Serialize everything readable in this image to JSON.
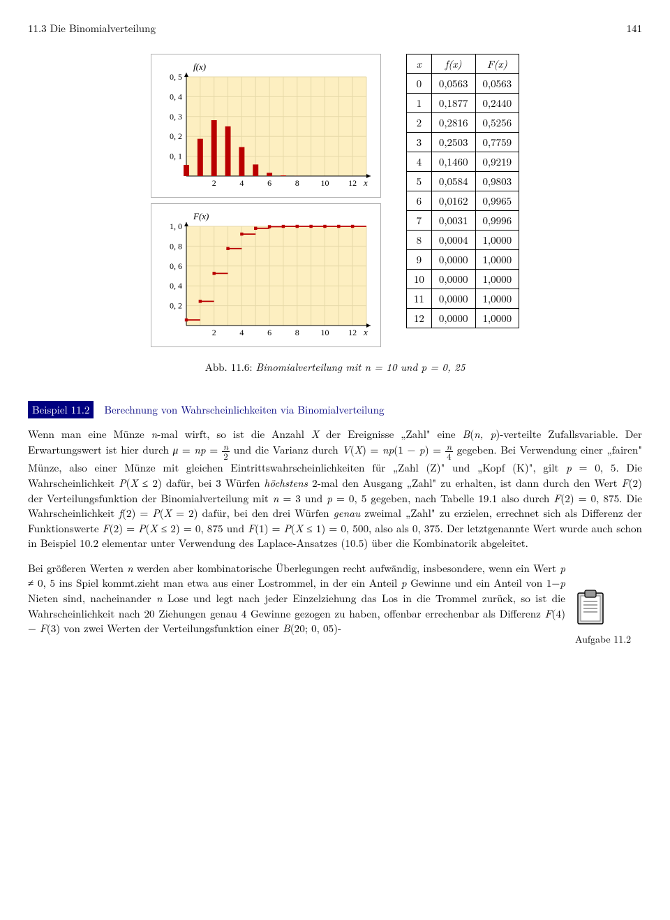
{
  "header": {
    "section": "11.3 Die Binomialverteilung",
    "page": "141"
  },
  "pmf_chart": {
    "type": "bar",
    "ylabel_expr": "f(x)",
    "xlabel": "x",
    "ylim": [
      0,
      0.5
    ],
    "ytick_step": 0.1,
    "ytick_labels": [
      "0, 1",
      "0, 2",
      "0, 3",
      "0, 4",
      "0, 5"
    ],
    "xlim": [
      0,
      13
    ],
    "xtick_step": 2,
    "xtick_labels": [
      "2",
      "4",
      "6",
      "8",
      "10",
      "12"
    ],
    "x_values": [
      0,
      1,
      2,
      3,
      4,
      5,
      6,
      7,
      8,
      9,
      10,
      11,
      12
    ],
    "y_values": [
      0.0563,
      0.1877,
      0.2816,
      0.2503,
      0.146,
      0.0584,
      0.0162,
      0.0031,
      0.0004,
      0.0,
      0.0,
      0.0,
      0.0
    ],
    "bar_color": "#b90000",
    "bar_width": 0.4,
    "background_color": "#fdefc1",
    "grid_color": "#e6d9a8",
    "frame_fill": "#ffffff"
  },
  "cdf_chart": {
    "type": "step",
    "ylabel_expr": "F(x)",
    "xlabel": "x",
    "ylim": [
      0,
      1.0
    ],
    "ytick_step": 0.2,
    "ytick_labels": [
      "0, 2",
      "0, 4",
      "0, 6",
      "0, 8",
      "1, 0"
    ],
    "xlim": [
      0,
      13
    ],
    "xtick_step": 2,
    "xtick_labels": [
      "2",
      "4",
      "6",
      "8",
      "10",
      "12"
    ],
    "x_values": [
      0,
      1,
      2,
      3,
      4,
      5,
      6,
      7,
      8,
      9,
      10,
      11,
      12
    ],
    "y_values": [
      0.0563,
      0.244,
      0.5256,
      0.7759,
      0.9219,
      0.9803,
      0.9965,
      0.9996,
      1.0,
      1.0,
      1.0,
      1.0,
      1.0
    ],
    "line_color": "#b90000",
    "marker_fill": "#b90000",
    "line_width": 1.8,
    "marker_size": 2.2,
    "background_color": "#fdefc1",
    "grid_color": "#e6d9a8",
    "frame_fill": "#ffffff"
  },
  "table": {
    "headers": [
      "x",
      "f(x)",
      "F(x)"
    ],
    "rows": [
      [
        "0",
        "0,0563",
        "0,0563"
      ],
      [
        "1",
        "0,1877",
        "0,2440"
      ],
      [
        "2",
        "0,2816",
        "0,5256"
      ],
      [
        "3",
        "0,2503",
        "0,7759"
      ],
      [
        "4",
        "0,1460",
        "0,9219"
      ],
      [
        "5",
        "0,0584",
        "0,9803"
      ],
      [
        "6",
        "0,0162",
        "0,9965"
      ],
      [
        "7",
        "0,0031",
        "0,9996"
      ],
      [
        "8",
        "0,0004",
        "1,0000"
      ],
      [
        "9",
        "0,0000",
        "1,0000"
      ],
      [
        "10",
        "0,0000",
        "1,0000"
      ],
      [
        "11",
        "0,0000",
        "1,0000"
      ],
      [
        "12",
        "0,0000",
        "1,0000"
      ]
    ]
  },
  "caption": {
    "label": "Abb. 11.6:",
    "text": "Binomialverteilung mit n = 10 und p = 0, 25"
  },
  "example": {
    "label": "Beispiel 11.2",
    "title": "Berechnung von Wahrscheinlichkeiten via Binomialverteilung"
  },
  "sidebar": {
    "task_label": "Aufgabe 11.2"
  }
}
